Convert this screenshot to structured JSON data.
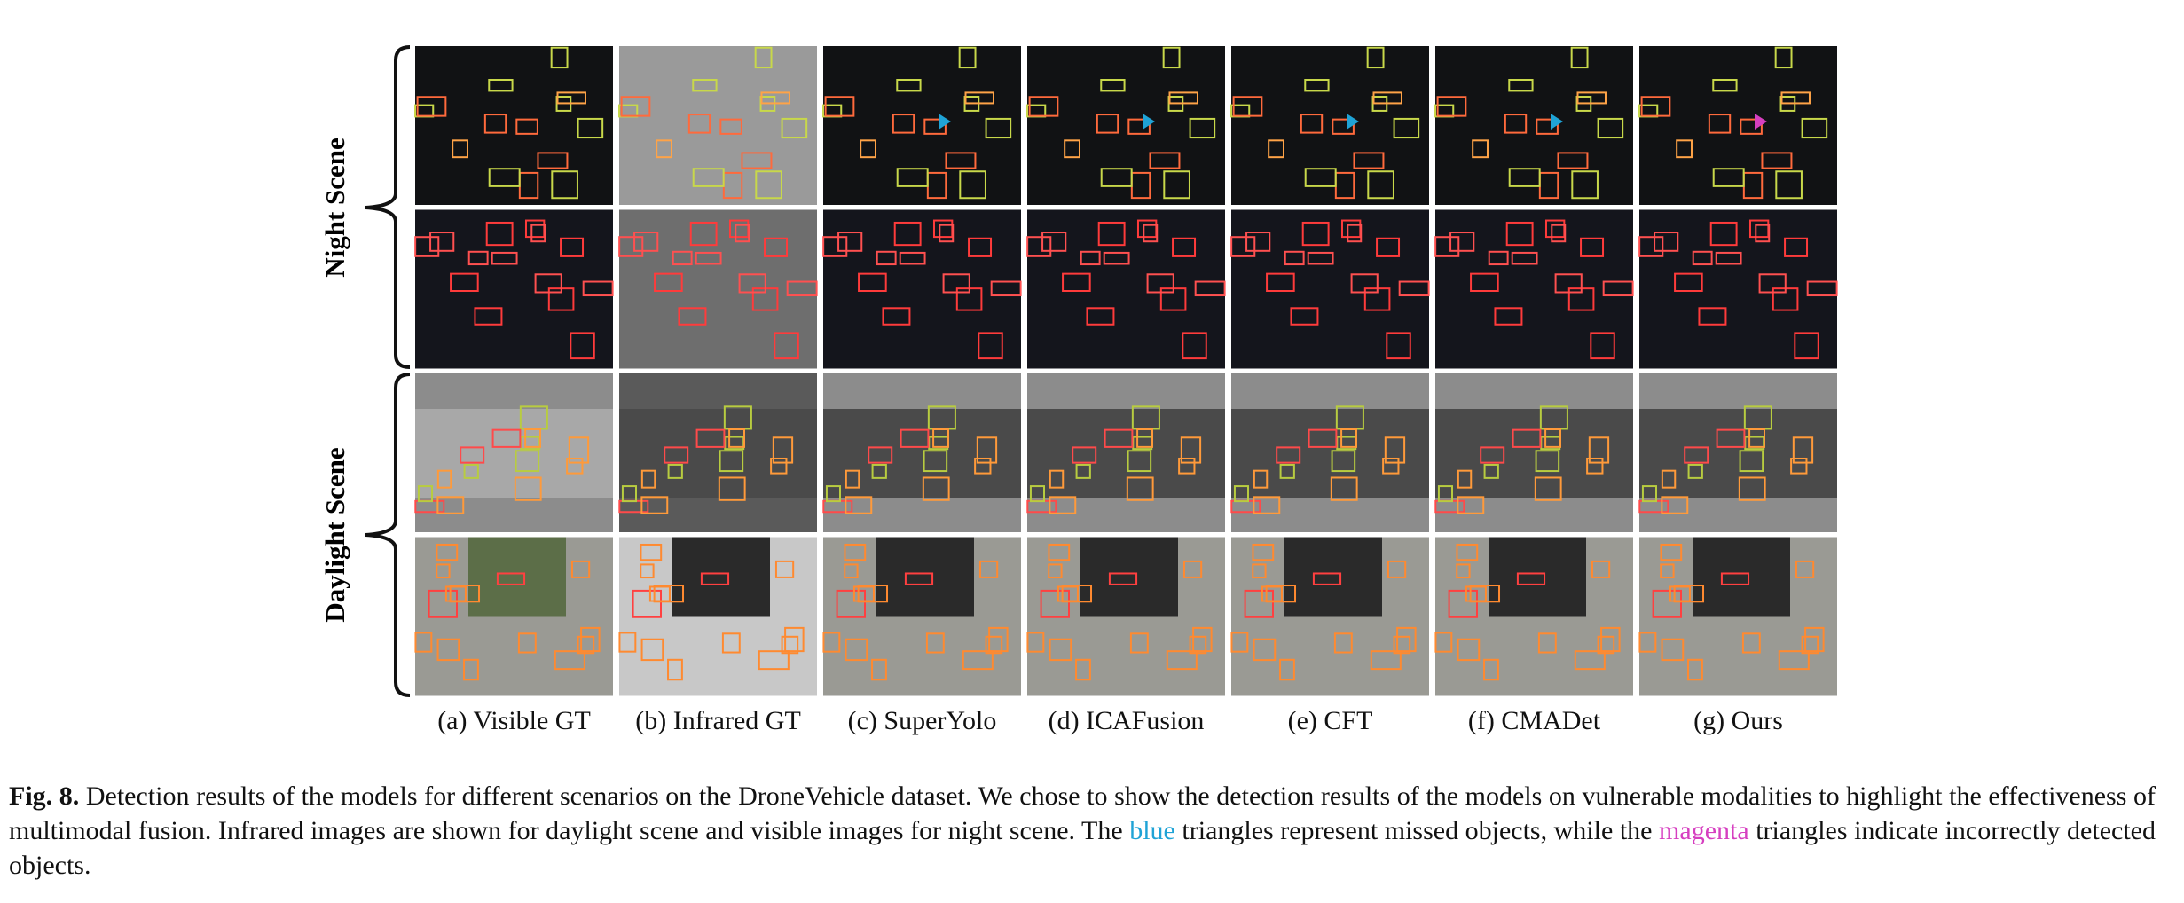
{
  "figure": {
    "row_groups": [
      "Night Scene",
      "Daylight Scene"
    ],
    "columns": [
      "(a) Visible GT",
      "(b) Infrared GT",
      "(c) SuperYolo",
      "(d) ICAFusion",
      "(e) CFT",
      "(f) CMADet",
      "(g) Ours"
    ],
    "caption": {
      "label": "Fig. 8.",
      "segments": [
        " Detection results of the models for different scenarios on the DroneVehicle dataset. We chose to show the detection results of the models on vulnerable modalities to highlight the effectiveness of multimodal fusion. Infrared images are shown for daylight scene and visible images for night scene. The ",
        "blue",
        " triangles represent missed objects, while the ",
        "magenta",
        " triangles indicate incorrectly detected objects."
      ]
    }
  }
}
